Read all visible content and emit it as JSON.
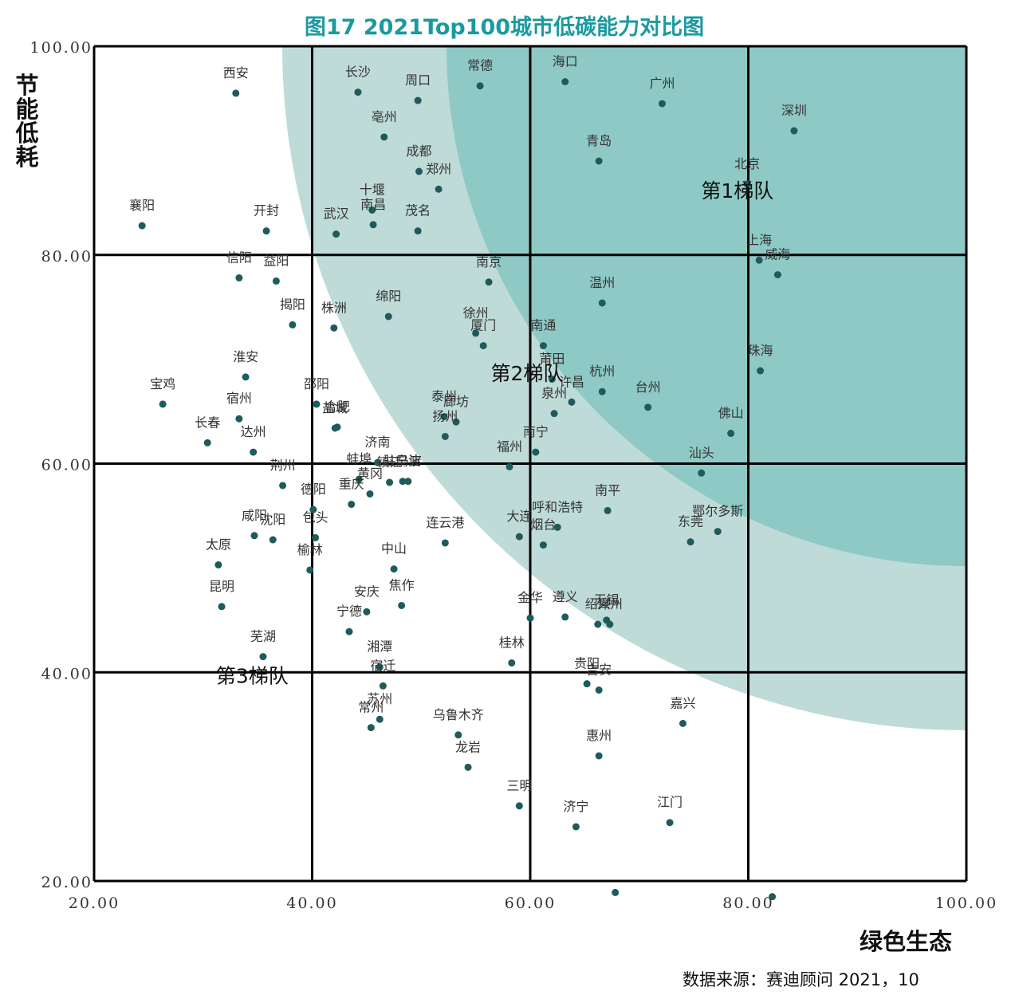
{
  "chart_data": {
    "type": "scatter",
    "title": "图17  2021Top100城市低碳能力对比图",
    "xlabel": "绿色生态",
    "ylabel": "节能低耗",
    "source": "数据来源：赛迪顾问  2021，10",
    "xlim": [
      20,
      100
    ],
    "ylim": [
      20,
      100
    ],
    "xticks": [
      "20.00",
      "40.00",
      "60.00",
      "80.00",
      "100.00"
    ],
    "yticks": [
      "20.00",
      "40.00",
      "60.00",
      "80.00",
      "100.00"
    ],
    "grid": true,
    "colors": {
      "point": "#1f5b5b",
      "title": "#1a9aa0",
      "tier1": "#8ec9c5",
      "tier2": "#bedbd8",
      "grid": "#000000"
    },
    "tiers": [
      {
        "label": "第1梯队",
        "x": 79.0,
        "y": 85.5
      },
      {
        "label": "第2梯队",
        "x": 59.7,
        "y": 68.0
      },
      {
        "label": "第3梯队",
        "x": 34.5,
        "y": 39.0
      }
    ],
    "points": [
      {
        "name": "西安",
        "x": 33.0,
        "y": 95.5
      },
      {
        "name": "长沙",
        "x": 44.2,
        "y": 95.6
      },
      {
        "name": "周口",
        "x": 49.7,
        "y": 94.8
      },
      {
        "name": "常德",
        "x": 55.4,
        "y": 96.2
      },
      {
        "name": "海口",
        "x": 63.2,
        "y": 96.6
      },
      {
        "name": "广州",
        "x": 72.1,
        "y": 94.5
      },
      {
        "name": "深圳",
        "x": 84.2,
        "y": 91.9
      },
      {
        "name": "亳州",
        "x": 46.6,
        "y": 91.3
      },
      {
        "name": "青岛",
        "x": 66.3,
        "y": 89.0
      },
      {
        "name": "成都",
        "x": 49.8,
        "y": 88.0
      },
      {
        "name": "郑州",
        "x": 51.6,
        "y": 86.3
      },
      {
        "name": "北京",
        "x": 79.9,
        "y": 86.8
      },
      {
        "name": "襄阳",
        "x": 24.4,
        "y": 82.8
      },
      {
        "name": "开封",
        "x": 35.8,
        "y": 82.3
      },
      {
        "name": "武汉",
        "x": 42.2,
        "y": 82.0
      },
      {
        "name": "十堰",
        "x": 45.5,
        "y": 84.3
      },
      {
        "name": "茂名",
        "x": 49.7,
        "y": 82.3
      },
      {
        "name": "南昌",
        "x": 45.6,
        "y": 82.9
      },
      {
        "name": "上海",
        "x": 81.0,
        "y": 79.5
      },
      {
        "name": "威海",
        "x": 82.7,
        "y": 78.1
      },
      {
        "name": "信阳",
        "x": 33.3,
        "y": 77.8
      },
      {
        "name": "益阳",
        "x": 36.7,
        "y": 77.5
      },
      {
        "name": "南京",
        "x": 56.2,
        "y": 77.4
      },
      {
        "name": "温州",
        "x": 66.6,
        "y": 75.4
      },
      {
        "name": "揭阳",
        "x": 38.2,
        "y": 73.3
      },
      {
        "name": "株洲",
        "x": 42.0,
        "y": 73.0
      },
      {
        "name": "绵阳",
        "x": 47.0,
        "y": 74.1
      },
      {
        "name": "徐州",
        "x": 55.0,
        "y": 72.5
      },
      {
        "name": "厦门",
        "x": 55.7,
        "y": 71.3
      },
      {
        "name": "南通",
        "x": 61.2,
        "y": 71.3
      },
      {
        "name": "莆田",
        "x": 62.0,
        "y": 68.1
      },
      {
        "name": "珠海",
        "x": 81.1,
        "y": 68.9
      },
      {
        "name": "淮安",
        "x": 33.9,
        "y": 68.3
      },
      {
        "name": "宝鸡",
        "x": 26.3,
        "y": 65.7
      },
      {
        "name": "杭州",
        "x": 66.6,
        "y": 66.9
      },
      {
        "name": "许昌",
        "x": 63.8,
        "y": 65.9
      },
      {
        "name": "台州",
        "x": 70.8,
        "y": 65.4
      },
      {
        "name": "邵阳",
        "x": 40.4,
        "y": 65.7
      },
      {
        "name": "宿州",
        "x": 33.3,
        "y": 64.3
      },
      {
        "name": "盐城",
        "x": 42.1,
        "y": 63.4
      },
      {
        "name": "合肥",
        "x": 42.3,
        "y": 63.5
      },
      {
        "name": "泰州",
        "x": 52.1,
        "y": 64.5
      },
      {
        "name": "廊坊",
        "x": 53.2,
        "y": 64.0
      },
      {
        "name": "扬州",
        "x": 52.2,
        "y": 62.6
      },
      {
        "name": "泉州",
        "x": 62.2,
        "y": 64.8
      },
      {
        "name": "长春",
        "x": 30.4,
        "y": 62.0
      },
      {
        "name": "达州",
        "x": 34.6,
        "y": 61.1
      },
      {
        "name": "佛山",
        "x": 78.4,
        "y": 62.9
      },
      {
        "name": "济南",
        "x": 46.0,
        "y": 60.1
      },
      {
        "name": "福州",
        "x": 58.1,
        "y": 59.7
      },
      {
        "name": "南宁",
        "x": 60.5,
        "y": 61.1
      },
      {
        "name": "蚌埠",
        "x": 44.3,
        "y": 58.5
      },
      {
        "name": "宁波",
        "x": 48.8,
        "y": 58.3
      },
      {
        "name": "汕头",
        "x": 75.7,
        "y": 59.1
      },
      {
        "name": "荆州",
        "x": 37.3,
        "y": 57.9
      },
      {
        "name": "镇江",
        "x": 47.1,
        "y": 58.2
      },
      {
        "name": "驻马店",
        "x": 48.3,
        "y": 58.3
      },
      {
        "name": "德阳",
        "x": 40.1,
        "y": 55.6
      },
      {
        "name": "黄冈",
        "x": 45.3,
        "y": 57.1
      },
      {
        "name": "重庆",
        "x": 43.6,
        "y": 56.1
      },
      {
        "name": "南平",
        "x": 67.1,
        "y": 55.5
      },
      {
        "name": "呼和浩特",
        "x": 62.5,
        "y": 53.9
      },
      {
        "name": "鄂尔多斯",
        "x": 77.2,
        "y": 53.5
      },
      {
        "name": "咸阳",
        "x": 34.7,
        "y": 53.1
      },
      {
        "name": "包头",
        "x": 40.3,
        "y": 52.9
      },
      {
        "name": "连云港",
        "x": 52.2,
        "y": 52.4
      },
      {
        "name": "大连",
        "x": 59.0,
        "y": 53.0
      },
      {
        "name": "烟台",
        "x": 61.2,
        "y": 52.2
      },
      {
        "name": "东莞",
        "x": 74.7,
        "y": 52.5
      },
      {
        "name": "太原",
        "x": 31.4,
        "y": 50.3
      },
      {
        "name": "沈阳",
        "x": 36.4,
        "y": 52.7
      },
      {
        "name": "榆林",
        "x": 39.8,
        "y": 49.8
      },
      {
        "name": "中山",
        "x": 47.5,
        "y": 49.9
      },
      {
        "name": "昆明",
        "x": 31.7,
        "y": 46.3
      },
      {
        "name": "安庆",
        "x": 45.0,
        "y": 45.8
      },
      {
        "name": "焦作",
        "x": 48.2,
        "y": 46.4
      },
      {
        "name": "金华",
        "x": 60.0,
        "y": 45.2
      },
      {
        "name": "遵义",
        "x": 63.2,
        "y": 45.3
      },
      {
        "name": "绍兴",
        "x": 66.2,
        "y": 44.6
      },
      {
        "name": "无锡",
        "x": 67.0,
        "y": 45.0
      },
      {
        "name": "漳州",
        "x": 67.3,
        "y": 44.6
      },
      {
        "name": "宁德",
        "x": 43.4,
        "y": 43.9
      },
      {
        "name": "芜湖",
        "x": 35.5,
        "y": 41.5
      },
      {
        "name": "湘潭",
        "x": 46.2,
        "y": 40.5
      },
      {
        "name": "桂林",
        "x": 58.3,
        "y": 40.9
      },
      {
        "name": "宿迁",
        "x": 46.5,
        "y": 38.7
      },
      {
        "name": "贵阳",
        "x": 65.2,
        "y": 38.9
      },
      {
        "name": "吉安",
        "x": 66.3,
        "y": 38.3
      },
      {
        "name": "苏州",
        "x": 46.2,
        "y": 35.5
      },
      {
        "name": "常州",
        "x": 45.4,
        "y": 34.7
      },
      {
        "name": "乌鲁木齐",
        "x": 53.4,
        "y": 34.0
      },
      {
        "name": "嘉兴",
        "x": 74.0,
        "y": 35.1
      },
      {
        "name": "惠州",
        "x": 66.3,
        "y": 32.0
      },
      {
        "name": "龙岩",
        "x": 54.3,
        "y": 30.9
      },
      {
        "name": "三明",
        "x": 59.0,
        "y": 27.2
      },
      {
        "name": "济宁",
        "x": 64.2,
        "y": 25.2
      },
      {
        "name": "江门",
        "x": 72.8,
        "y": 25.6
      },
      {
        "name": "",
        "x": 67.8,
        "y": 18.9
      },
      {
        "name": "",
        "x": 82.2,
        "y": 18.5
      }
    ]
  }
}
